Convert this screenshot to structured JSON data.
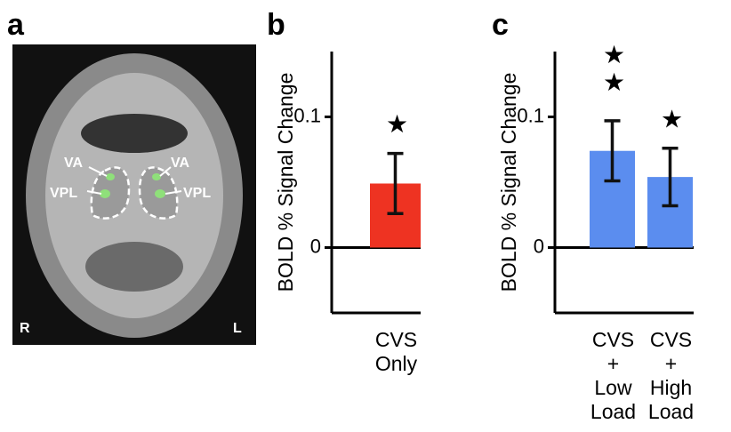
{
  "panel_labels": [
    "a",
    "b",
    "c"
  ],
  "brain_image": {
    "region_labels": [
      "VA",
      "VPL",
      "VA",
      "VPL"
    ],
    "hemispheres": [
      "R",
      "L"
    ]
  },
  "chart_data": [
    {
      "type": "bar",
      "ylabel": "BOLD % Signal Change",
      "categories": [
        [
          "CVS",
          "Only"
        ]
      ],
      "values": [
        0.049
      ],
      "errors": [
        0.023
      ],
      "significance": [
        "★"
      ],
      "color": "#ee3322",
      "ylim": [
        -0.05,
        0.15
      ],
      "yticks": [
        0,
        0.1
      ]
    },
    {
      "type": "bar",
      "ylabel": "BOLD % Signal Change",
      "categories": [
        [
          "CVS",
          "+",
          "Low",
          "Load"
        ],
        [
          "CVS",
          "+",
          "High",
          "Load"
        ]
      ],
      "values": [
        0.074,
        0.054
      ],
      "errors": [
        0.023,
        0.022
      ],
      "significance": [
        "★★",
        "★"
      ],
      "color": "#5b8def",
      "ylim": [
        -0.05,
        0.15
      ],
      "yticks": [
        0,
        0.1
      ]
    }
  ]
}
